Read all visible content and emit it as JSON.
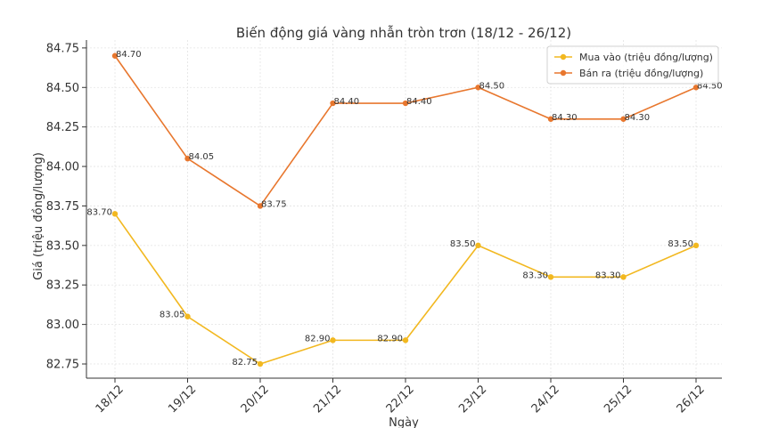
{
  "chart_data": {
    "type": "line",
    "title": "Biến động giá vàng nhẫn tròn trơn (18/12 - 26/12)",
    "xlabel": "Ngày",
    "ylabel": "Giá (triệu đồng/lượng)",
    "categories": [
      "18/12",
      "19/12",
      "20/12",
      "21/12",
      "22/12",
      "23/12",
      "24/12",
      "25/12",
      "26/12"
    ],
    "ylim": [
      82.66,
      84.8
    ],
    "yticks": [
      82.75,
      83.0,
      83.25,
      83.5,
      83.75,
      84.0,
      84.25,
      84.5,
      84.75
    ],
    "grid": true,
    "legend_position": "top-right",
    "series": [
      {
        "name": "Mua vào (triệu đồng/lượng)",
        "color": "#f2b820",
        "values": [
          83.7,
          83.05,
          82.75,
          82.9,
          82.9,
          83.5,
          83.3,
          83.3,
          83.5
        ],
        "labels": [
          "83.70",
          "83.05",
          "82.75",
          "82.90",
          "82.90",
          "83.50",
          "83.30",
          "83.30",
          "83.50"
        ]
      },
      {
        "name": "Bán ra (triệu đồng/lượng)",
        "color": "#e8772e",
        "values": [
          84.7,
          84.05,
          83.75,
          84.4,
          84.4,
          84.5,
          84.3,
          84.3,
          84.5
        ],
        "labels": [
          "84.70",
          "84.05",
          "83.75",
          "84.40",
          "84.40",
          "84.50",
          "84.30",
          "84.30",
          "84.50"
        ]
      }
    ]
  }
}
